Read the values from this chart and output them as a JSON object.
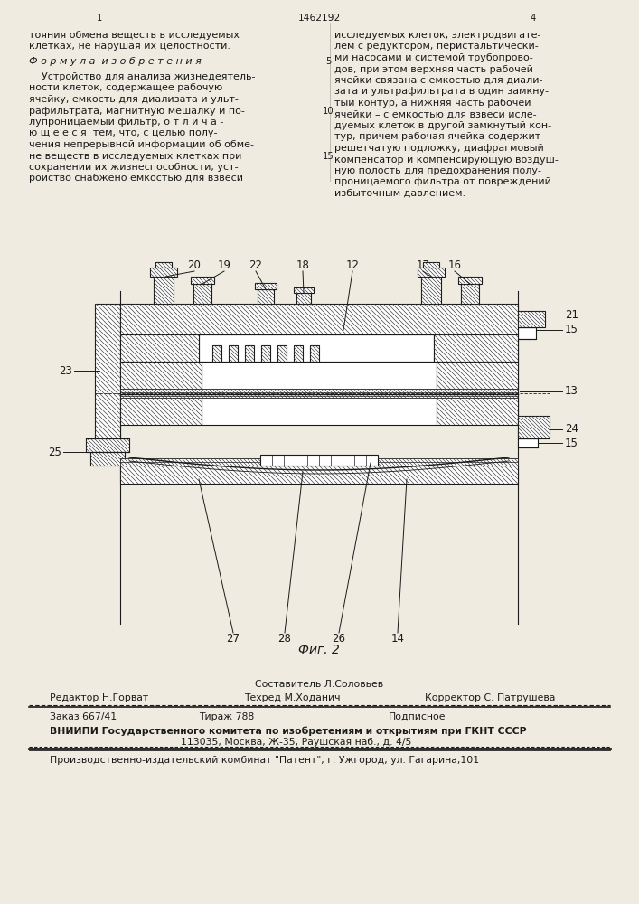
{
  "page_width": 7.07,
  "page_height": 10.0,
  "bg_color": "#f0ebe0",
  "header_patent_num": "1462192",
  "header_page_num": "4",
  "header_col_num": "1",
  "fig_label": "Фиг. 2",
  "label_sostavitel": "Составитель Л.Соловьев",
  "label_editor": "Редактор Н.Горват",
  "label_tech": "Техред М.Ходанич",
  "label_corrector": "Корректор С. Патрушева",
  "label_order": "Заказ 667/41",
  "label_tirage": "Тираж 788",
  "label_podpisnoe": "Подписное",
  "label_vniip": "ВНИИПИ Государственного комитета по изобретениям и открытиям при ГКНТ СССР",
  "label_address": "113035, Москва, Ж-35, Раушская наб., д. 4/5",
  "label_factory": "Производственно-издательский комбинат \"Патент\", г. Ужгород, ул. Гагарина,101",
  "line_color": "#1a1a1a",
  "hatch_color": "#444444",
  "text_color": "#1a1a1a"
}
